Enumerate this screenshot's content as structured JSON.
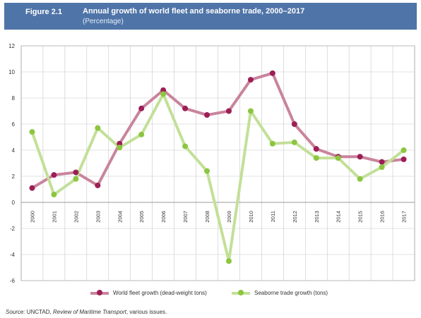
{
  "figure": {
    "number": "Figure 2.1",
    "title": "Annual growth of world fleet and seaborne trade, 2000–2017",
    "subtitle": "(Percentage)"
  },
  "chart_data": {
    "type": "line",
    "categories": [
      "2000",
      "2001",
      "2002",
      "2003",
      "2004",
      "2005",
      "2006",
      "2007",
      "2008",
      "2009",
      "2010",
      "2011",
      "2012",
      "2013",
      "2014",
      "2015",
      "2016",
      "2017"
    ],
    "series": [
      {
        "name": "World fleet growth (dead-weight tons)",
        "color": "#c9849c",
        "marker_color": "#9c1f55",
        "values": [
          1.1,
          2.1,
          2.3,
          1.3,
          4.5,
          7.2,
          8.6,
          7.2,
          6.7,
          7.0,
          9.4,
          9.9,
          6.0,
          4.1,
          3.5,
          3.5,
          3.1,
          3.3
        ]
      },
      {
        "name": "Seaborne trade growth (tons)",
        "color": "#c2e098",
        "marker_color": "#8cc63f",
        "values": [
          5.4,
          0.6,
          1.8,
          5.7,
          4.2,
          5.2,
          8.3,
          4.3,
          2.4,
          -4.5,
          7.0,
          4.5,
          4.6,
          3.4,
          3.4,
          1.8,
          2.7,
          4.0
        ]
      }
    ],
    "yticks": [
      "12",
      "10",
      "8",
      "6",
      "4",
      "2",
      "0",
      "-2",
      "-4",
      "-6"
    ],
    "ylim": [
      -6,
      12
    ],
    "grid": true,
    "legend": "bottom"
  },
  "source": {
    "prefix": "Source:",
    "body1": " UNCTAD, ",
    "publication": "Review of Maritime Transport",
    "body2": ", various issues."
  }
}
